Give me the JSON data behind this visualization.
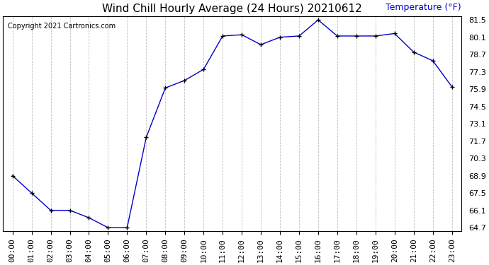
{
  "title": "Wind Chill Hourly Average (24 Hours) 20210612",
  "ylabel": "Temperature (°F)",
  "copyright": "Copyright 2021 Cartronics.com",
  "hours": [
    "00:00",
    "01:00",
    "02:00",
    "03:00",
    "04:00",
    "05:00",
    "06:00",
    "07:00",
    "08:00",
    "09:00",
    "10:00",
    "11:00",
    "12:00",
    "13:00",
    "14:00",
    "15:00",
    "16:00",
    "17:00",
    "18:00",
    "19:00",
    "20:00",
    "21:00",
    "22:00",
    "23:00"
  ],
  "values": [
    68.9,
    67.5,
    66.1,
    66.1,
    65.5,
    64.7,
    64.7,
    72.0,
    76.0,
    76.6,
    77.5,
    80.2,
    80.3,
    79.5,
    80.1,
    80.2,
    81.5,
    80.2,
    80.2,
    80.2,
    80.4,
    78.9,
    78.2,
    76.1
  ],
  "ylim_min": 64.7,
  "ylim_max": 81.5,
  "yticks": [
    81.5,
    80.1,
    78.7,
    77.3,
    75.9,
    74.5,
    73.1,
    71.7,
    70.3,
    68.9,
    67.5,
    66.1,
    64.7
  ],
  "line_color": "#0000cc",
  "marker": "+",
  "marker_color": "#000000",
  "background_color": "#ffffff",
  "grid_color": "#c0c0c0",
  "title_fontsize": 11,
  "label_fontsize": 9,
  "tick_fontsize": 8,
  "copyright_color": "#000000",
  "ylabel_color": "#0000cc"
}
